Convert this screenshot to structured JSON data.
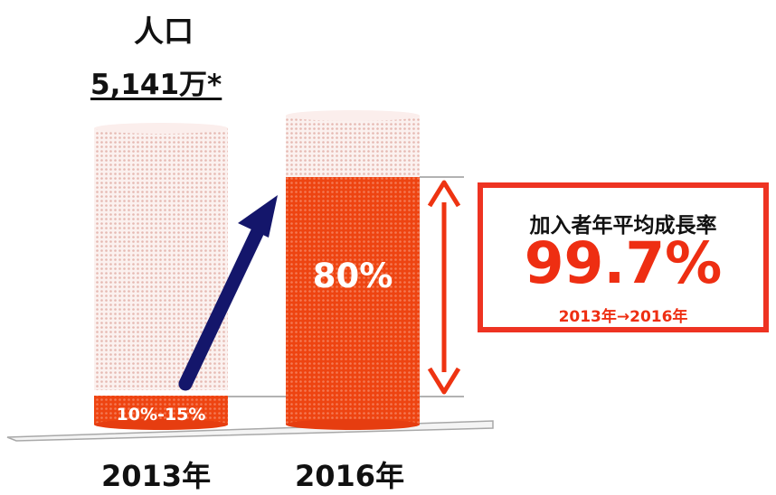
{
  "chart_data": {
    "type": "bar",
    "categories": [
      "2013年",
      "2016年"
    ],
    "labels": [
      "10%-15%",
      "80%"
    ],
    "values": [
      12.5,
      80
    ],
    "ylim": [
      0,
      100
    ],
    "title": "人口",
    "population": "5,141万*",
    "growth_title": "加入者年平均成長率",
    "growth_value": "99.7%",
    "growth_period": "2013年→2016年"
  },
  "colors": {
    "fill": "#ee4411",
    "pale": "#f3dcd8",
    "arrow_dark": "#14166b",
    "arrow_red": "#ee3311",
    "box_border": "#ee3322"
  }
}
